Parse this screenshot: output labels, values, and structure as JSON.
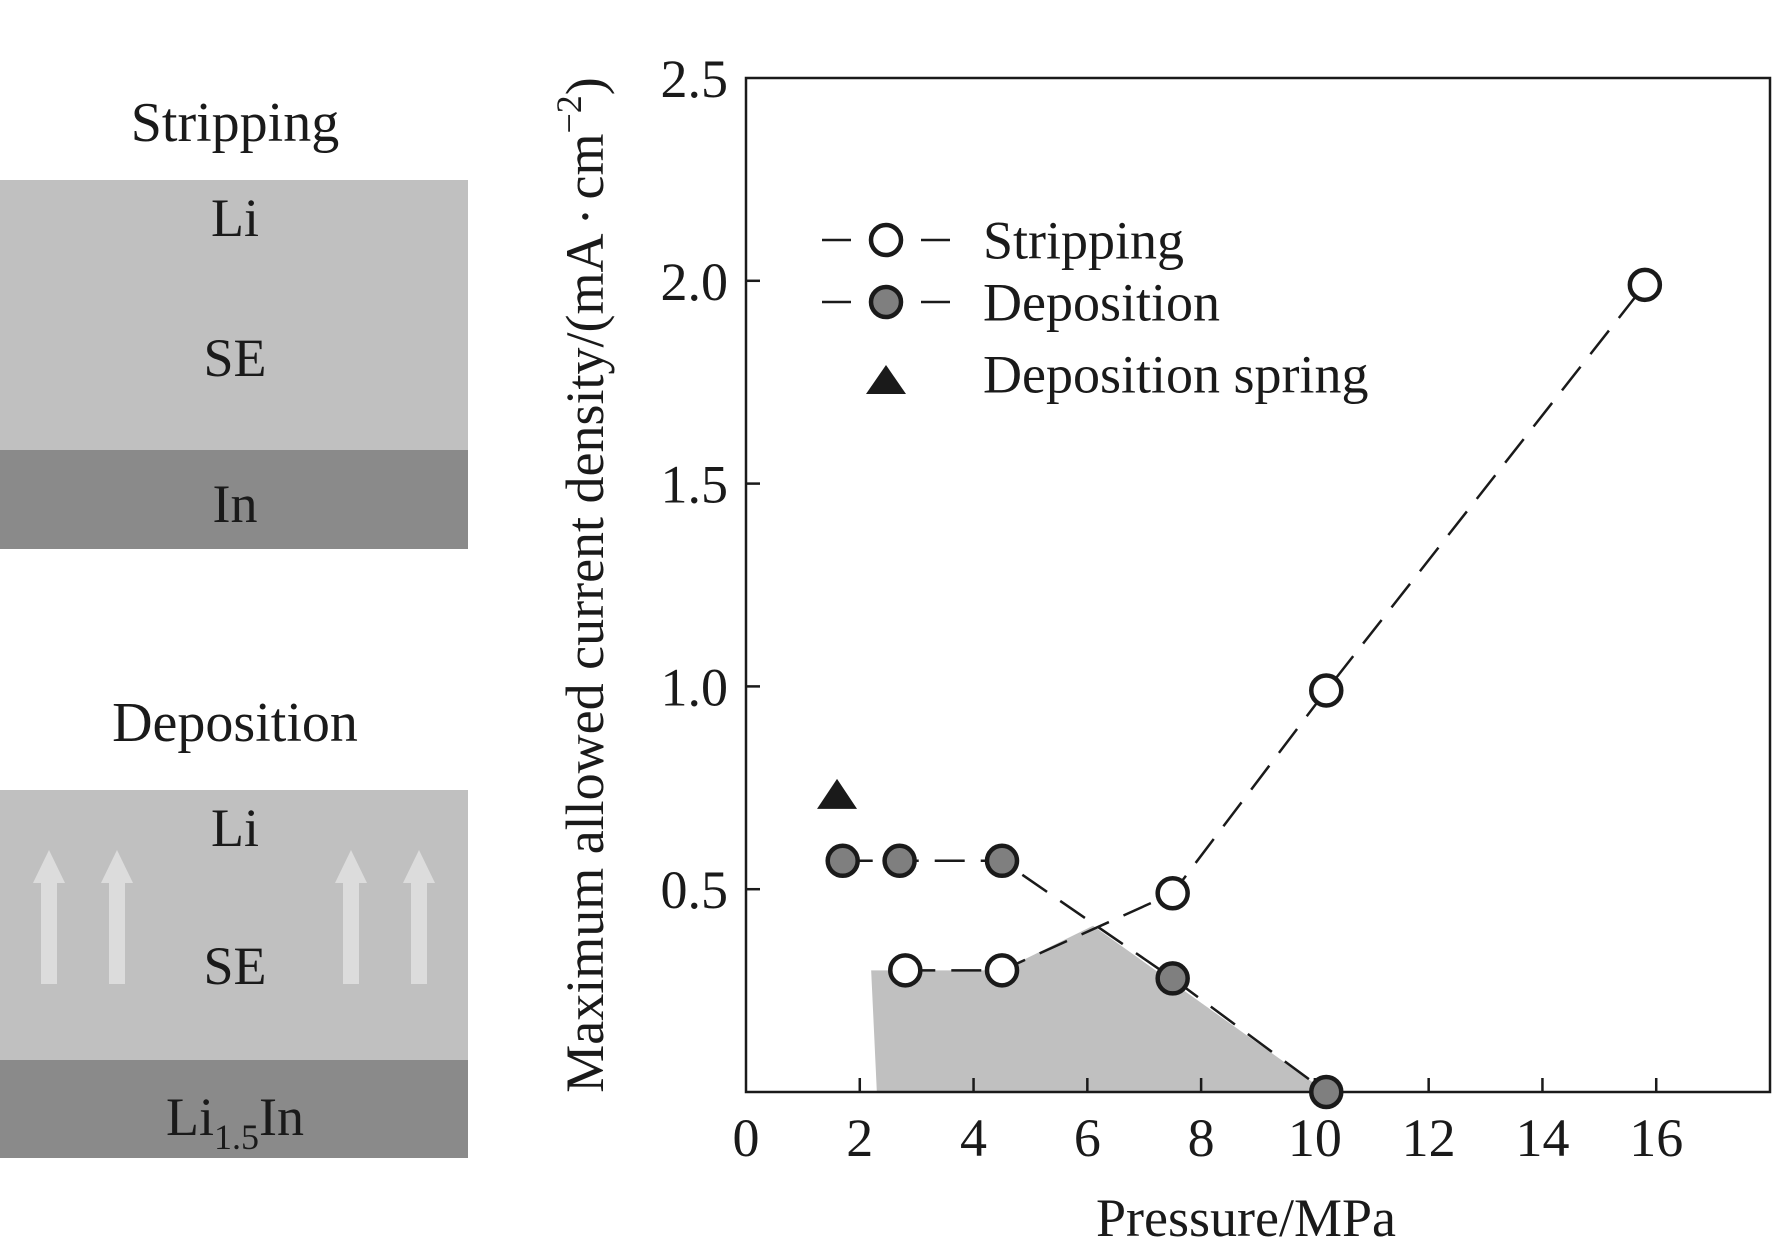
{
  "diagram": {
    "stripping": {
      "title": "Stripping",
      "layer_li": "Li",
      "layer_se": "SE",
      "layer_bottom": "In"
    },
    "deposition": {
      "title": "Deposition",
      "layer_li": "Li",
      "layer_se": "SE",
      "layer_bottom_main": "Li",
      "layer_bottom_sub": "1.5",
      "layer_bottom_tail": "In"
    },
    "colors": {
      "light_layer": "#c0c0c0",
      "dark_layer": "#8a8a8a",
      "arrow": "#dcdcdc"
    }
  },
  "chart_data": {
    "type": "scatter",
    "xlabel": "Pressure/MPa",
    "ylabel": "Maximum allowed current density/(mA·cm⁻²)",
    "ylabel_main": "Maximum allowed current density/(mA",
    "ylabel_dot": "·",
    "ylabel_unit": "cm",
    "ylabel_exp": "−2",
    "ylabel_close": ")",
    "xlim": [
      0,
      18
    ],
    "ylim": [
      0,
      2.5
    ],
    "x_ticks": [
      0,
      2,
      4,
      6,
      8,
      10,
      12,
      14,
      16
    ],
    "x_tick_labels": [
      "0",
      "2",
      "4",
      "6",
      "8",
      "10",
      "12",
      "14",
      "16"
    ],
    "y_ticks": [
      0.5,
      1.0,
      1.5,
      2.0,
      2.5
    ],
    "y_tick_labels": [
      "0.5",
      "1.0",
      "1.5",
      "2.0",
      "2.5"
    ],
    "grid": false,
    "legend_position": "top-left",
    "series": [
      {
        "name": "Stripping",
        "marker": "open-circle",
        "line": "dashed",
        "points": [
          [
            2.8,
            0.3
          ],
          [
            4.5,
            0.3
          ],
          [
            7.5,
            0.49
          ],
          [
            10.2,
            0.99
          ],
          [
            15.8,
            1.99
          ]
        ]
      },
      {
        "name": "Deposition",
        "marker": "filled-circle",
        "line": "dashed",
        "color": "#7f7f7f",
        "points": [
          [
            1.7,
            0.57
          ],
          [
            2.7,
            0.57
          ],
          [
            4.5,
            0.57
          ],
          [
            7.5,
            0.28
          ],
          [
            10.2,
            0.0
          ]
        ]
      },
      {
        "name": "Deposition spring",
        "marker": "filled-triangle",
        "line": "none",
        "color": "#1a1a1a",
        "points": [
          [
            1.6,
            0.73
          ]
        ]
      }
    ],
    "shaded_region": {
      "color": "#c0c0c0",
      "boundary": [
        [
          2.3,
          0.0
        ],
        [
          2.2,
          0.3
        ],
        [
          4.5,
          0.3
        ],
        [
          6.1,
          0.41
        ],
        [
          10.2,
          0.0
        ]
      ]
    }
  }
}
